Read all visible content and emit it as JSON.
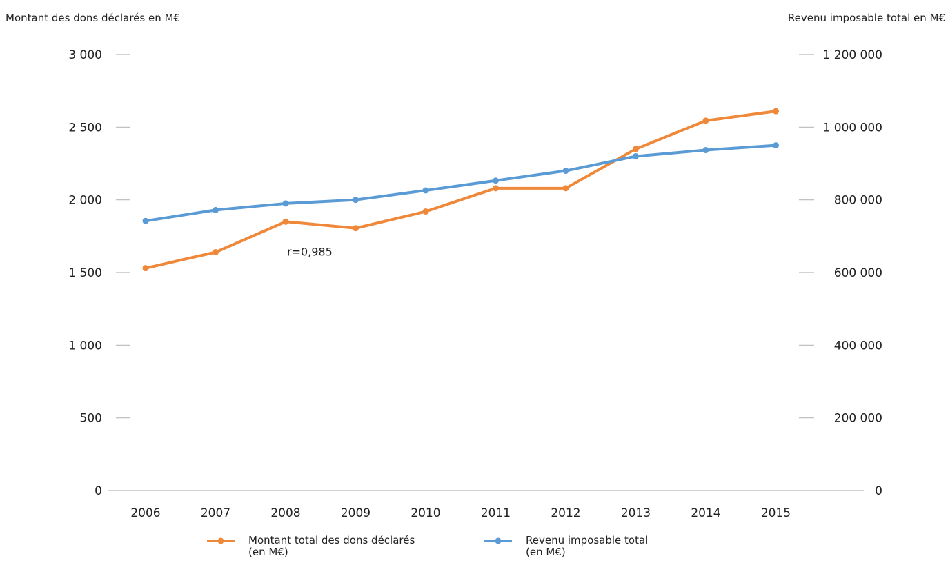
{
  "chart_data": {
    "type": "line",
    "x": [
      "2006",
      "2007",
      "2008",
      "2009",
      "2010",
      "2011",
      "2012",
      "2013",
      "2014",
      "2015"
    ],
    "y_left": {
      "label": "Montant des dons déclarés en M€",
      "ylim": [
        0,
        3000
      ],
      "ticks": [
        0,
        500,
        1000,
        1500,
        2000,
        2500,
        3000
      ],
      "tick_labels": [
        "0",
        "500",
        "1 000",
        "1 500",
        "2 000",
        "2 500",
        "3 000"
      ]
    },
    "y_right": {
      "label": "Revenu imposable total en M€",
      "ylim": [
        0,
        1200000
      ],
      "ticks": [
        0,
        200000,
        400000,
        600000,
        800000,
        1000000,
        1200000
      ],
      "tick_labels": [
        "0",
        "200 000",
        "400 000",
        "600 000",
        "800 000",
        "1 000 000",
        "1 200 000"
      ]
    },
    "series": [
      {
        "name_lines": [
          "Montant total des dons déclarés",
          "(en M€)"
        ],
        "axis": "left",
        "color": "#f0883a",
        "values": [
          1530,
          1640,
          1850,
          1805,
          1920,
          2080,
          2080,
          2350,
          2545,
          2610
        ]
      },
      {
        "name_lines": [
          "Revenu imposable total",
          "(en M€)"
        ],
        "axis": "right",
        "color": "#5a9bd5",
        "values": [
          742000,
          772000,
          790000,
          800000,
          826000,
          853000,
          880000,
          920000,
          937000,
          950000
        ]
      }
    ],
    "annotations": [
      {
        "text": "r=0,985",
        "x": "2008",
        "y_left": 1640
      }
    ],
    "grid": false,
    "legend_position": "bottom"
  }
}
